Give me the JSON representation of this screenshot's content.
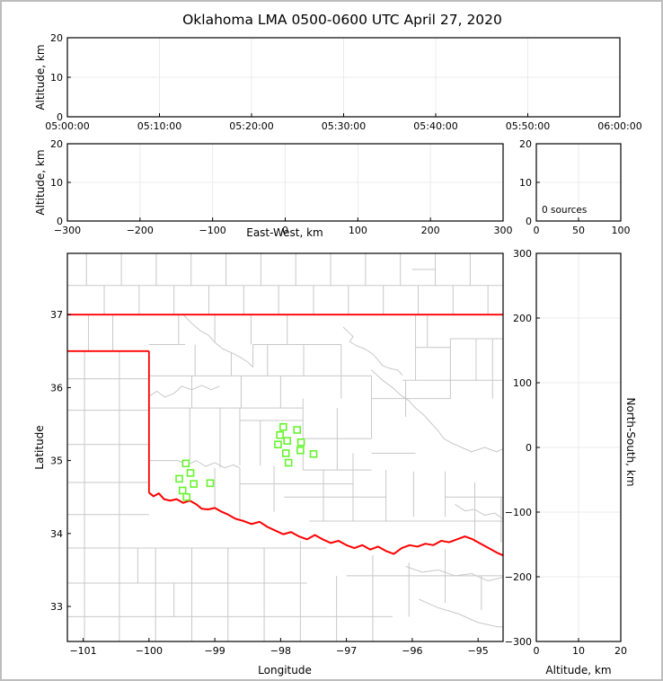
{
  "title": "Oklahoma LMA 0500-0600 UTC April 27, 2020",
  "colors": {
    "frame": "#000000",
    "grid": "#ebebeb",
    "county_line": "#c8c8c8",
    "state_border": "#ff0000",
    "red_river": "#ff0000",
    "station_marker": "#66f42e",
    "text": "#000000",
    "window_border": "#bdbdbd",
    "background": "#ffffff"
  },
  "chart_data": [
    {
      "id": "time_altitude_panel",
      "type": "scatter",
      "title": "",
      "xlabel": "",
      "ylabel": "Altitude, km",
      "xlim": [
        0,
        3600
      ],
      "ylim": [
        0,
        20
      ],
      "x_tick_values": [
        0,
        600,
        1200,
        1800,
        2400,
        3000,
        3600
      ],
      "x_tick_labels": [
        "05:00:00",
        "05:10:00",
        "05:20:00",
        "05:30:00",
        "05:40:00",
        "05:50:00",
        "06:00:00"
      ],
      "y_tick_values": [
        0,
        10,
        20
      ],
      "y_tick_labels": [
        "0",
        "10",
        "20"
      ],
      "grid": true,
      "points": []
    },
    {
      "id": "eastwest_altitude_panel",
      "type": "scatter",
      "title": "",
      "xlabel": "East-West, km",
      "ylabel": "Altitude, km",
      "xlim": [
        -300,
        300
      ],
      "ylim": [
        0,
        20
      ],
      "x_tick_values": [
        -300,
        -200,
        -100,
        0,
        100,
        200,
        300
      ],
      "x_tick_labels": [
        "−300",
        "−200",
        "−100",
        "0",
        "100",
        "200",
        "300"
      ],
      "y_tick_values": [
        0,
        10,
        20
      ],
      "y_tick_labels": [
        "0",
        "10",
        "20"
      ],
      "grid": true,
      "points": []
    },
    {
      "id": "altitude_histogram_panel",
      "type": "line",
      "title": "",
      "xlabel": "",
      "ylabel": "",
      "xlim": [
        0,
        100
      ],
      "ylim": [
        0,
        20
      ],
      "x_tick_values": [
        0,
        50,
        100
      ],
      "x_tick_labels": [
        "0",
        "50",
        "100"
      ],
      "y_tick_values": [
        0,
        10,
        20
      ],
      "y_tick_labels": [
        "0",
        "10",
        "20"
      ],
      "annotation": "0 sources",
      "grid": true,
      "points": []
    },
    {
      "id": "plan_view_map_panel",
      "type": "scatter",
      "title": "",
      "xlabel": "Longitude",
      "ylabel": "Latitude",
      "xlim": [
        -101.24,
        -94.62
      ],
      "ylim": [
        32.52,
        37.84
      ],
      "x_tick_values": [
        -101,
        -100,
        -99,
        -98,
        -97,
        -96,
        -95
      ],
      "x_tick_labels": [
        "−101",
        "−100",
        "−99",
        "−98",
        "−97",
        "−96",
        "−95"
      ],
      "y_tick_values": [
        33,
        34,
        35,
        36,
        37
      ],
      "y_tick_labels": [
        "33",
        "34",
        "35",
        "36",
        "37"
      ],
      "grid": false,
      "stations": [
        [
          -99.44,
          34.96
        ],
        [
          -99.37,
          34.83
        ],
        [
          -99.54,
          34.75
        ],
        [
          -99.32,
          34.68
        ],
        [
          -99.07,
          34.69
        ],
        [
          -99.49,
          34.59
        ],
        [
          -99.43,
          34.5
        ],
        [
          -97.96,
          35.46
        ],
        [
          -97.75,
          35.42
        ],
        [
          -98.01,
          35.35
        ],
        [
          -97.9,
          35.27
        ],
        [
          -98.04,
          35.22
        ],
        [
          -97.69,
          35.25
        ],
        [
          -97.7,
          35.14
        ],
        [
          -97.92,
          35.1
        ],
        [
          -97.5,
          35.09
        ],
        [
          -97.88,
          34.97
        ]
      ],
      "points": []
    },
    {
      "id": "northsouth_altitude_panel",
      "type": "scatter",
      "title": "",
      "xlabel": "Altitude, km",
      "ylabel": "North-South, km",
      "xlim": [
        0,
        20
      ],
      "ylim": [
        -300,
        300
      ],
      "x_tick_values": [
        0,
        10,
        20
      ],
      "x_tick_labels": [
        "0",
        "10",
        "20"
      ],
      "y_tick_values": [
        -300,
        -200,
        -100,
        0,
        100,
        200,
        300
      ],
      "y_tick_labels": [
        "−300",
        "−200",
        "−100",
        "0",
        "100",
        "200",
        "300"
      ],
      "grid": true,
      "points": []
    }
  ],
  "map_layers": {
    "county_segments": [
      [
        -101.24,
        37.4,
        -94.62,
        37.4
      ],
      [
        -100.95,
        37.4,
        -100.95,
        37.84
      ],
      [
        -100.42,
        37.4,
        -100.42,
        37.84
      ],
      [
        -99.89,
        37.4,
        -99.89,
        37.84
      ],
      [
        -99.36,
        37.4,
        -99.36,
        37.84
      ],
      [
        -98.83,
        37.4,
        -98.83,
        37.84
      ],
      [
        -98.3,
        37.4,
        -98.3,
        37.84
      ],
      [
        -97.77,
        37.4,
        -97.77,
        37.84
      ],
      [
        -97.24,
        37.4,
        -97.24,
        37.84
      ],
      [
        -96.71,
        37.4,
        -96.71,
        37.84
      ],
      [
        -96.18,
        37.4,
        -96.18,
        37.84
      ],
      [
        -95.65,
        37.4,
        -95.65,
        37.84
      ],
      [
        -95.12,
        37.4,
        -95.12,
        37.84
      ],
      [
        -100.68,
        37.0,
        -100.68,
        37.4
      ],
      [
        -100.15,
        37.0,
        -100.15,
        37.4
      ],
      [
        -99.62,
        37.0,
        -99.62,
        37.4
      ],
      [
        -99.09,
        37.0,
        -99.09,
        37.4
      ],
      [
        -98.56,
        37.0,
        -98.56,
        37.4
      ],
      [
        -98.03,
        37.0,
        -98.03,
        37.4
      ],
      [
        -97.5,
        37.0,
        -97.5,
        37.4
      ],
      [
        -96.97,
        37.0,
        -96.97,
        37.4
      ],
      [
        -96.44,
        37.0,
        -96.44,
        37.4
      ],
      [
        -95.91,
        37.0,
        -95.91,
        37.4
      ],
      [
        -95.38,
        37.0,
        -95.38,
        37.4
      ],
      [
        -94.85,
        37.0,
        -94.85,
        37.4
      ],
      [
        -96.0,
        37.62,
        -95.65,
        37.62
      ],
      [
        -100.55,
        36.5,
        -100.55,
        37.0
      ],
      [
        -100.92,
        36.5,
        -100.92,
        37.0
      ],
      [
        -100.98,
        32.52,
        -100.98,
        36.5
      ],
      [
        -100.45,
        32.52,
        -100.45,
        36.5
      ],
      [
        -101.24,
        36.12,
        -100.0,
        36.12
      ],
      [
        -101.24,
        35.69,
        -100.0,
        35.69
      ],
      [
        -101.24,
        35.22,
        -100.0,
        35.22
      ],
      [
        -101.24,
        34.7,
        -100.0,
        34.7
      ],
      [
        -101.24,
        34.26,
        -100.0,
        34.26
      ],
      [
        -101.24,
        33.8,
        -97.3,
        33.8
      ],
      [
        -101.24,
        33.32,
        -97.6,
        33.32
      ],
      [
        -97.0,
        33.42,
        -94.62,
        33.42
      ],
      [
        -101.24,
        32.86,
        -96.3,
        32.86
      ],
      [
        -99.9,
        33.8,
        -99.9,
        32.52
      ],
      [
        -99.35,
        33.8,
        -99.35,
        32.52
      ],
      [
        -98.8,
        33.8,
        -98.8,
        32.52
      ],
      [
        -98.25,
        33.8,
        -98.25,
        32.52
      ],
      [
        -97.7,
        33.9,
        -97.7,
        32.52
      ],
      [
        -97.15,
        33.42,
        -97.15,
        32.52
      ],
      [
        -96.6,
        33.7,
        -96.6,
        32.52
      ],
      [
        -96.05,
        33.6,
        -96.05,
        32.86
      ],
      [
        -95.5,
        33.78,
        -95.5,
        33.05
      ],
      [
        -94.95,
        33.42,
        -94.95,
        32.95
      ],
      [
        -100.17,
        33.8,
        -100.17,
        33.32
      ],
      [
        -99.62,
        33.32,
        -99.62,
        32.86
      ],
      [
        -100.0,
        36.59,
        -99.45,
        36.59
      ],
      [
        -99.55,
        36.59,
        -99.55,
        37.0
      ],
      [
        -99.0,
        36.62,
        -99.0,
        37.0
      ],
      [
        -98.45,
        36.59,
        -98.45,
        37.0
      ],
      [
        -97.9,
        36.59,
        -97.9,
        37.0
      ],
      [
        -98.42,
        36.59,
        -97.08,
        36.59
      ],
      [
        -100.0,
        36.16,
        -96.62,
        36.16
      ],
      [
        -99.3,
        36.16,
        -99.3,
        36.59
      ],
      [
        -98.75,
        36.16,
        -98.75,
        36.48
      ],
      [
        -98.2,
        36.16,
        -98.2,
        36.59
      ],
      [
        -97.65,
        36.16,
        -97.65,
        36.59
      ],
      [
        -97.08,
        36.59,
        -97.08,
        35.85
      ],
      [
        -95.95,
        37.0,
        -95.95,
        36.1
      ],
      [
        -95.77,
        37.0,
        -95.77,
        36.55
      ],
      [
        -95.95,
        36.55,
        -95.42,
        36.55
      ],
      [
        -95.42,
        36.67,
        -94.62,
        36.67
      ],
      [
        -95.42,
        36.67,
        -95.42,
        35.85
      ],
      [
        -95.03,
        36.67,
        -95.03,
        36.1
      ],
      [
        -94.78,
        36.67,
        -94.78,
        35.85
      ],
      [
        -96.15,
        36.1,
        -94.62,
        36.1
      ],
      [
        -94.62,
        36.1,
        -94.62,
        34.5
      ],
      [
        -100.0,
        35.72,
        -97.66,
        35.72
      ],
      [
        -99.35,
        35.72,
        -99.35,
        36.16
      ],
      [
        -98.6,
        35.72,
        -98.6,
        36.16
      ],
      [
        -98.0,
        35.72,
        -98.0,
        36.16
      ],
      [
        -97.66,
        35.85,
        -97.66,
        34.87
      ],
      [
        -96.62,
        35.85,
        -95.42,
        35.85
      ],
      [
        -96.62,
        36.16,
        -96.62,
        35.3
      ],
      [
        -96.1,
        36.1,
        -96.1,
        35.6
      ],
      [
        -98.62,
        35.55,
        -97.66,
        35.55
      ],
      [
        -98.62,
        35.72,
        -98.62,
        34.93
      ],
      [
        -98.31,
        35.55,
        -98.31,
        34.93
      ],
      [
        -97.66,
        35.3,
        -96.62,
        35.3
      ],
      [
        -97.14,
        35.72,
        -97.14,
        34.87
      ],
      [
        -99.38,
        35.72,
        -99.38,
        35.0
      ],
      [
        -98.92,
        35.72,
        -98.92,
        34.9
      ],
      [
        -100.0,
        35.0,
        -99.56,
        35.0
      ],
      [
        -99.0,
        34.9,
        -99.0,
        34.35
      ],
      [
        -98.62,
        34.9,
        -98.62,
        34.2
      ],
      [
        -98.1,
        34.93,
        -98.1,
        34.3
      ],
      [
        -98.62,
        34.68,
        -96.9,
        34.68
      ],
      [
        -97.66,
        34.87,
        -96.62,
        34.87
      ],
      [
        -97.35,
        34.87,
        -97.35,
        34.17
      ],
      [
        -96.9,
        35.1,
        -96.9,
        34.17
      ],
      [
        -96.4,
        34.87,
        -96.4,
        34.17
      ],
      [
        -95.98,
        34.85,
        -95.98,
        34.23
      ],
      [
        -95.5,
        34.85,
        -95.5,
        34.23
      ],
      [
        -97.95,
        34.5,
        -96.4,
        34.5
      ],
      [
        -97.56,
        34.17,
        -94.62,
        34.17
      ],
      [
        -95.5,
        34.5,
        -94.62,
        34.5
      ],
      [
        -95.05,
        34.7,
        -95.05,
        33.88
      ],
      [
        -94.65,
        34.5,
        -94.65,
        33.88
      ],
      [
        -96.62,
        35.1,
        -95.95,
        35.1
      ]
    ],
    "county_curves": [
      [
        [
          -97.05,
          36.83
        ],
        [
          -96.97,
          36.76
        ],
        [
          -96.9,
          36.7
        ],
        [
          -96.95,
          36.63
        ],
        [
          -96.84,
          36.57
        ],
        [
          -96.72,
          36.53
        ],
        [
          -96.6,
          36.46
        ],
        [
          -96.52,
          36.38
        ],
        [
          -96.45,
          36.3
        ],
        [
          -96.33,
          36.26
        ],
        [
          -96.22,
          36.24
        ],
        [
          -96.15,
          36.17
        ]
      ],
      [
        [
          -99.47,
          36.99
        ],
        [
          -99.35,
          36.88
        ],
        [
          -99.22,
          36.78
        ],
        [
          -99.1,
          36.72
        ],
        [
          -99.0,
          36.62
        ],
        [
          -98.88,
          36.53
        ],
        [
          -98.75,
          36.48
        ],
        [
          -98.62,
          36.42
        ],
        [
          -98.5,
          36.35
        ],
        [
          -98.42,
          36.28
        ],
        [
          -98.42,
          36.59
        ]
      ],
      [
        [
          -100.0,
          35.88
        ],
        [
          -99.88,
          35.95
        ],
        [
          -99.76,
          35.87
        ],
        [
          -99.62,
          35.92
        ],
        [
          -99.5,
          36.02
        ],
        [
          -99.35,
          35.97
        ],
        [
          -99.2,
          36.03
        ],
        [
          -99.05,
          35.97
        ],
        [
          -98.93,
          36.02
        ]
      ],
      [
        [
          -96.62,
          36.24
        ],
        [
          -96.45,
          36.1
        ],
        [
          -96.3,
          36.0
        ],
        [
          -96.18,
          35.9
        ],
        [
          -96.05,
          35.82
        ],
        [
          -95.95,
          35.72
        ],
        [
          -95.82,
          35.62
        ],
        [
          -95.7,
          35.5
        ],
        [
          -95.6,
          35.4
        ],
        [
          -95.52,
          35.3
        ],
        [
          -95.4,
          35.24
        ],
        [
          -95.25,
          35.18
        ],
        [
          -95.1,
          35.12
        ],
        [
          -94.9,
          35.18
        ],
        [
          -94.72,
          35.12
        ],
        [
          -94.62,
          35.16
        ]
      ],
      [
        [
          -99.56,
          35.0
        ],
        [
          -99.42,
          34.94
        ],
        [
          -99.28,
          35.0
        ],
        [
          -99.14,
          34.92
        ],
        [
          -99.0,
          34.97
        ],
        [
          -98.85,
          34.9
        ],
        [
          -98.72,
          34.94
        ],
        [
          -98.62,
          34.9
        ]
      ],
      [
        [
          -95.35,
          34.4
        ],
        [
          -95.2,
          34.31
        ],
        [
          -95.05,
          34.33
        ],
        [
          -94.9,
          34.25
        ],
        [
          -94.75,
          34.28
        ],
        [
          -94.62,
          34.2
        ]
      ],
      [
        [
          -96.1,
          33.55
        ],
        [
          -95.85,
          33.47
        ],
        [
          -95.6,
          33.5
        ],
        [
          -95.35,
          33.42
        ],
        [
          -95.1,
          33.45
        ],
        [
          -94.85,
          33.35
        ],
        [
          -94.62,
          33.4
        ]
      ],
      [
        [
          -95.9,
          33.1
        ],
        [
          -95.6,
          32.98
        ],
        [
          -95.3,
          32.9
        ],
        [
          -95.0,
          32.78
        ],
        [
          -94.7,
          32.72
        ],
        [
          -94.62,
          32.72
        ]
      ]
    ],
    "state_border": [
      [
        [
          -101.24,
          37.0
        ],
        [
          -94.62,
          37.0
        ]
      ],
      [
        [
          -101.24,
          36.5
        ],
        [
          -100.0,
          36.5
        ]
      ],
      [
        [
          -100.0,
          36.5
        ],
        [
          -100.0,
          34.56
        ]
      ]
    ],
    "red_river": [
      [
        -100.0,
        34.56
      ],
      [
        -99.93,
        34.51
      ],
      [
        -99.85,
        34.55
      ],
      [
        -99.77,
        34.47
      ],
      [
        -99.68,
        34.45
      ],
      [
        -99.58,
        34.47
      ],
      [
        -99.48,
        34.42
      ],
      [
        -99.38,
        34.45
      ],
      [
        -99.28,
        34.4
      ],
      [
        -99.2,
        34.34
      ],
      [
        -99.1,
        34.33
      ],
      [
        -99.0,
        34.35
      ],
      [
        -98.9,
        34.3
      ],
      [
        -98.8,
        34.26
      ],
      [
        -98.68,
        34.2
      ],
      [
        -98.56,
        34.17
      ],
      [
        -98.44,
        34.13
      ],
      [
        -98.32,
        34.16
      ],
      [
        -98.2,
        34.09
      ],
      [
        -98.08,
        34.04
      ],
      [
        -97.96,
        33.99
      ],
      [
        -97.84,
        34.02
      ],
      [
        -97.72,
        33.96
      ],
      [
        -97.6,
        33.92
      ],
      [
        -97.48,
        33.98
      ],
      [
        -97.36,
        33.92
      ],
      [
        -97.24,
        33.87
      ],
      [
        -97.12,
        33.9
      ],
      [
        -97.0,
        33.84
      ],
      [
        -96.88,
        33.8
      ],
      [
        -96.76,
        33.84
      ],
      [
        -96.64,
        33.78
      ],
      [
        -96.52,
        33.82
      ],
      [
        -96.4,
        33.76
      ],
      [
        -96.28,
        33.72
      ],
      [
        -96.16,
        33.8
      ],
      [
        -96.04,
        33.84
      ],
      [
        -95.92,
        33.82
      ],
      [
        -95.8,
        33.86
      ],
      [
        -95.68,
        33.84
      ],
      [
        -95.56,
        33.9
      ],
      [
        -95.44,
        33.88
      ],
      [
        -95.32,
        33.92
      ],
      [
        -95.2,
        33.96
      ],
      [
        -95.08,
        33.92
      ],
      [
        -94.96,
        33.86
      ],
      [
        -94.84,
        33.8
      ],
      [
        -94.72,
        33.74
      ],
      [
        -94.62,
        33.7
      ]
    ]
  }
}
